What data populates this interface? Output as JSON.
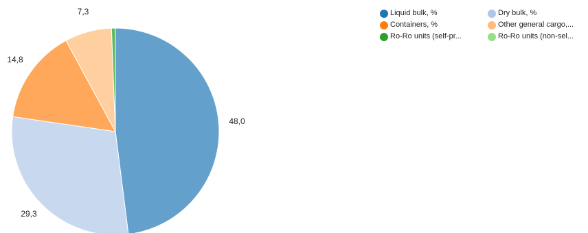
{
  "chart_data": {
    "type": "pie",
    "title": "",
    "legend_position": "top-right",
    "slices": [
      {
        "name": "Liquid bulk, %",
        "value": 48.0,
        "label": "48,0",
        "color": "#63a0cb",
        "legend_color": "#1f77b4"
      },
      {
        "name": "Dry bulk, %",
        "value": 29.3,
        "label": "29,3",
        "color": "#c8d8ee",
        "legend_color": "#aec7e8"
      },
      {
        "name": "Containers, %",
        "value": 14.8,
        "label": "14,8",
        "color": "#ffa85b",
        "legend_color": "#ff7f0e"
      },
      {
        "name": "Other general cargo,...",
        "value": 7.3,
        "label": "7,3",
        "color": "#ffcfa0",
        "legend_color": "#ffbb78"
      },
      {
        "name": "Ro-Ro units (self-pr...",
        "value": 0.6,
        "label": "",
        "color": "#5fb85f",
        "legend_color": "#2ca02c"
      },
      {
        "name": "Ro-Ro units (non-sel...",
        "value": 0.0,
        "label": "",
        "color": "#a6e19b",
        "legend_color": "#98df8a"
      }
    ]
  }
}
